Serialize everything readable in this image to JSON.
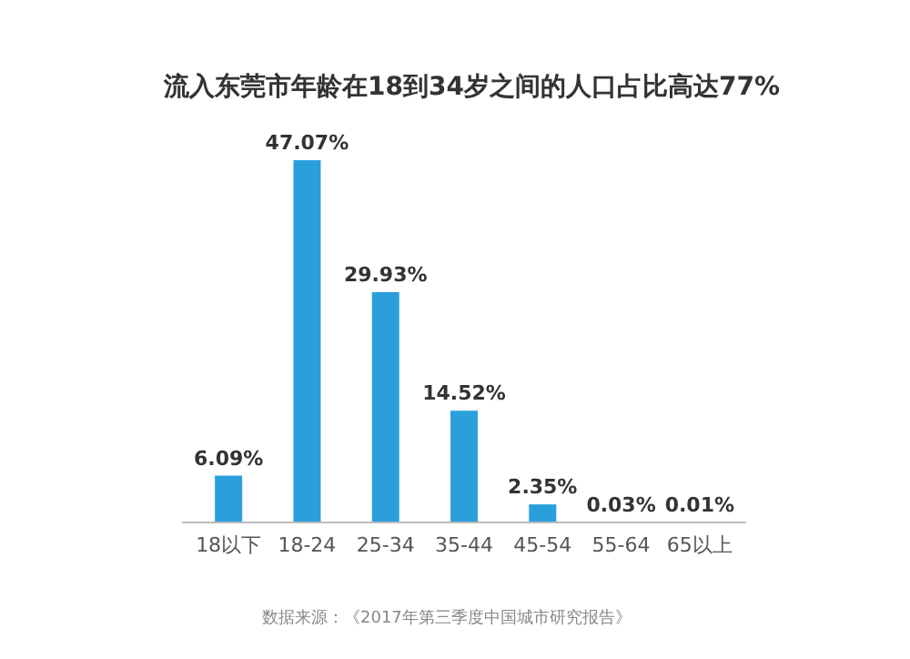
{
  "chart_data": {
    "type": "bar",
    "title": "流入东莞市年龄在18到34岁之间的人口占比高达77%",
    "categories": [
      "18以下",
      "18-24",
      "25-34",
      "35-44",
      "45-54",
      "55-64",
      "65以上"
    ],
    "values": [
      6.09,
      47.07,
      29.93,
      14.52,
      2.35,
      0.03,
      0.01
    ],
    "value_labels": [
      "6.09%",
      "47.07%",
      "29.93%",
      "14.52%",
      "2.35%",
      "0.03%",
      "0.01%"
    ],
    "color": "#2b9fdc",
    "annotations": [
      "数据来源：《2017年第三季度中国城市研究报告》"
    ]
  }
}
